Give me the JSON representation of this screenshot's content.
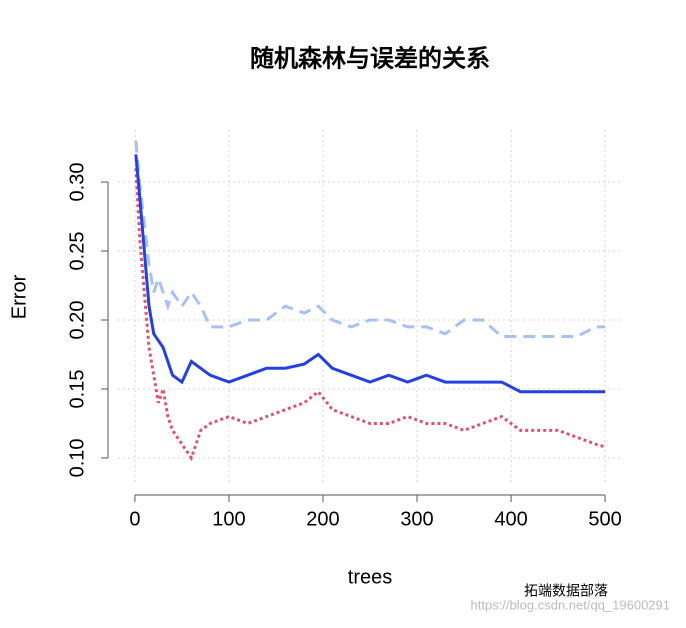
{
  "chart_data": {
    "type": "line",
    "title": "随机森林与误差的关系",
    "x_label": "trees",
    "y_label": "Error",
    "x": [
      1,
      5,
      10,
      15,
      20,
      25,
      30,
      35,
      40,
      50,
      60,
      70,
      80,
      100,
      120,
      140,
      160,
      180,
      195,
      210,
      230,
      250,
      270,
      290,
      310,
      330,
      350,
      370,
      390,
      410,
      430,
      450,
      470,
      490,
      500
    ],
    "series": [
      {
        "color": "#a9c0f5",
        "dash": "12,7",
        "values": [
          0.33,
          0.3,
          0.27,
          0.24,
          0.22,
          0.23,
          0.22,
          0.21,
          0.22,
          0.21,
          0.22,
          0.21,
          0.195,
          0.195,
          0.2,
          0.2,
          0.21,
          0.205,
          0.21,
          0.2,
          0.195,
          0.2,
          0.2,
          0.195,
          0.195,
          0.19,
          0.2,
          0.2,
          0.188,
          0.188,
          0.188,
          0.188,
          0.188,
          0.195,
          0.195
        ]
      },
      {
        "color": "#df536b",
        "dash": "3,3",
        "values": [
          0.31,
          0.26,
          0.22,
          0.18,
          0.16,
          0.14,
          0.15,
          0.13,
          0.12,
          0.11,
          0.1,
          0.12,
          0.125,
          0.13,
          0.125,
          0.13,
          0.135,
          0.14,
          0.148,
          0.135,
          0.13,
          0.125,
          0.125,
          0.13,
          0.125,
          0.125,
          0.12,
          0.125,
          0.13,
          0.12,
          0.12,
          0.12,
          0.115,
          0.11,
          0.108
        ]
      },
      {
        "color": "#2440e0",
        "dash": "none",
        "values": [
          0.32,
          0.29,
          0.25,
          0.21,
          0.19,
          0.185,
          0.18,
          0.17,
          0.16,
          0.155,
          0.17,
          0.165,
          0.16,
          0.155,
          0.16,
          0.165,
          0.165,
          0.168,
          0.175,
          0.165,
          0.16,
          0.155,
          0.16,
          0.155,
          0.16,
          0.155,
          0.155,
          0.155,
          0.155,
          0.148,
          0.148,
          0.148,
          0.148,
          0.148,
          0.148
        ]
      }
    ],
    "xlim": [
      -18,
      518
    ],
    "ylim": [
      0.0804,
      0.3377
    ],
    "xticks": [
      0,
      100,
      200,
      300,
      400,
      500
    ],
    "yticks": [
      {
        "value": 0.1,
        "label": "0.10"
      },
      {
        "value": 0.15,
        "label": "0.15"
      },
      {
        "value": 0.2,
        "label": "0.20"
      },
      {
        "value": 0.25,
        "label": "0.25"
      },
      {
        "value": 0.3,
        "label": "0.30"
      }
    ],
    "grid": true,
    "watermark": "拓端数据部落",
    "url": "https://blog.csdn.net/qq_19600291"
  }
}
